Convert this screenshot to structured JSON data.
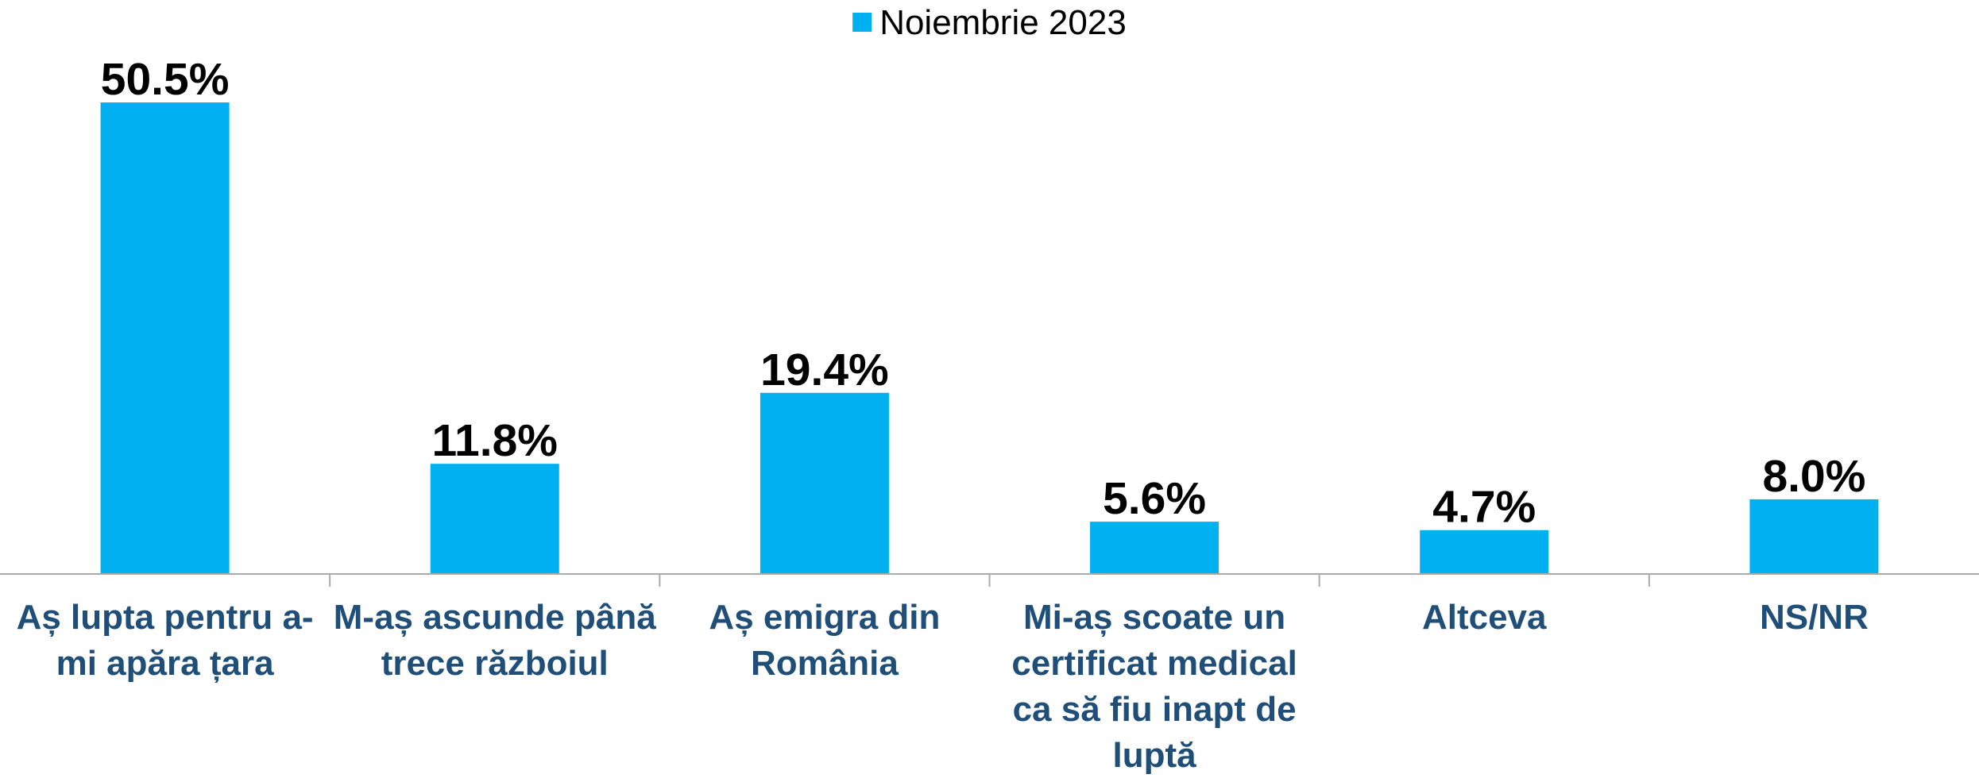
{
  "chart_data": {
    "type": "bar",
    "categories": [
      "Aș lupta pentru a-mi apăra țara",
      "M-aș ascunde până trece războiul",
      "Aș emigra din România",
      "Mi-aș scoate un certificat medical ca să fiu inapt de luptă",
      "Altceva",
      "NS/NR"
    ],
    "series": [
      {
        "name": "Noiembrie 2023",
        "color": "#00b0f0",
        "values": [
          50.5,
          11.8,
          19.4,
          5.6,
          4.7,
          8.0
        ],
        "value_labels": [
          "50.5%",
          "11.8%",
          "19.4%",
          "5.6%",
          "4.7%",
          "8.0%"
        ]
      }
    ],
    "legend": "top"
  }
}
